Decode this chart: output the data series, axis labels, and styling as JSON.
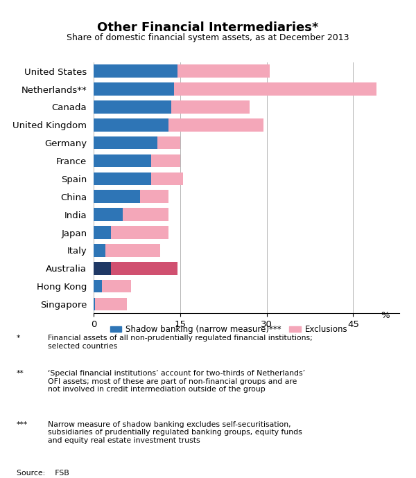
{
  "title": "Other Financial Intermediaries*",
  "subtitle": "Share of domestic financial system assets, as at December 2013",
  "categories": [
    "United States",
    "Netherlands**",
    "Canada",
    "United Kingdom",
    "Germany",
    "France",
    "Spain",
    "China",
    "India",
    "Japan",
    "Italy",
    "Australia",
    "Hong Kong",
    "Singapore"
  ],
  "shadow": [
    14.5,
    14.0,
    13.5,
    13.0,
    11.0,
    10.0,
    10.0,
    8.0,
    5.0,
    3.0,
    2.0,
    3.0,
    1.5,
    0.3
  ],
  "exclusions": [
    16.0,
    35.0,
    13.5,
    16.5,
    4.0,
    5.0,
    5.5,
    5.0,
    8.0,
    10.0,
    9.5,
    11.5,
    5.0,
    5.5
  ],
  "shadow_color": "#2E75B6",
  "australia_shadow_color": "#1F3864",
  "exclusions_color": "#F4A7B9",
  "australia_exclusions_color": "#D05070",
  "xlim": [
    0,
    53
  ],
  "xticks": [
    0,
    15,
    30,
    45
  ],
  "xlabel": "%",
  "legend_shadow_label": "Shadow banking (narrow measure)***",
  "legend_exclusions_label": "Exclusions",
  "source": "Source:    FSB",
  "fn1_marker": "*",
  "fn1_text": "Financial assets of all non-prudentially regulated financial institutions;\nselected countries",
  "fn2_marker": "**",
  "fn2_text": "‘Special financial institutions’ account for two-thirds of Netherlands’\nOFI assets; most of these are part of non-financial groups and are\nnot involved in credit intermediation outside of the group",
  "fn3_marker": "***",
  "fn3_text": "Narrow measure of shadow banking excludes self-securitisation,\nsubsidiaries of prudentially regulated banking groups, equity funds\nand equity real estate investment trusts"
}
